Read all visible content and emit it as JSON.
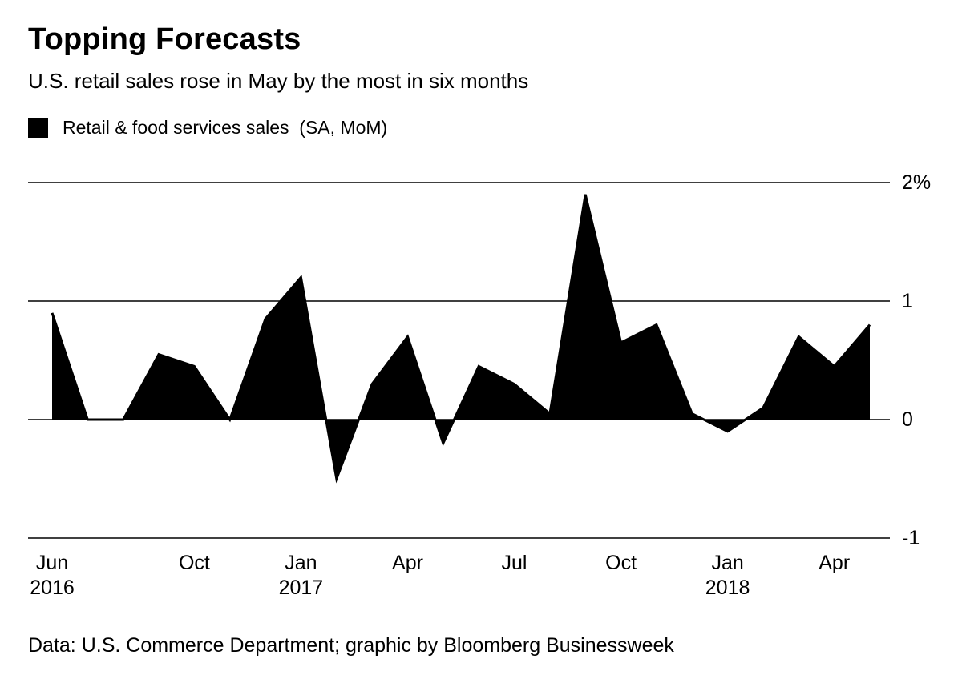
{
  "page": {
    "background": "#ffffff",
    "text_color": "#000000"
  },
  "header": {
    "title": "Topping Forecasts",
    "subtitle": "U.S. retail sales rose in May by the most in six months"
  },
  "legend": {
    "swatch_color": "#000000",
    "label": "Retail & food services sales  (SA, MoM)"
  },
  "chart_data": {
    "type": "area",
    "title": "Retail & food services sales (SA, MoM)",
    "unit": "%",
    "baseline": 0,
    "grid": "horizontal",
    "legend_position": "top-left",
    "fill_color": "#000000",
    "ylim": [
      -1,
      2
    ],
    "x": [
      "Jun 2016",
      "Jul 2016",
      "Aug 2016",
      "Sep 2016",
      "Oct 2016",
      "Nov 2016",
      "Dec 2016",
      "Jan 2017",
      "Feb 2017",
      "Mar 2017",
      "Apr 2017",
      "May 2017",
      "Jun 2017",
      "Jul 2017",
      "Aug 2017",
      "Sep 2017",
      "Oct 2017",
      "Nov 2017",
      "Dec 2017",
      "Jan 2018",
      "Feb 2018",
      "Mar 2018",
      "Apr 2018",
      "May 2018"
    ],
    "values": [
      0.9,
      0.0,
      0.0,
      0.55,
      0.45,
      0.0,
      0.85,
      1.2,
      -0.5,
      0.3,
      0.7,
      -0.2,
      0.45,
      0.3,
      0.05,
      1.9,
      0.65,
      0.8,
      0.05,
      -0.1,
      0.1,
      0.7,
      0.45,
      0.8
    ],
    "yticks": [
      {
        "value": 2,
        "label": "2%"
      },
      {
        "value": 1,
        "label": "1"
      },
      {
        "value": 0,
        "label": "0"
      },
      {
        "value": -1,
        "label": "-1"
      }
    ],
    "xticks": [
      {
        "index": 0,
        "label": "Jun",
        "year": "2016"
      },
      {
        "index": 4,
        "label": "Oct",
        "year": ""
      },
      {
        "index": 7,
        "label": "Jan",
        "year": "2017"
      },
      {
        "index": 10,
        "label": "Apr",
        "year": ""
      },
      {
        "index": 13,
        "label": "Jul",
        "year": ""
      },
      {
        "index": 16,
        "label": "Oct",
        "year": ""
      },
      {
        "index": 19,
        "label": "Jan",
        "year": "2018"
      },
      {
        "index": 22,
        "label": "Apr",
        "year": ""
      }
    ]
  },
  "footer": {
    "source": "Data: U.S. Commerce Department; graphic by Bloomberg Businessweek"
  }
}
